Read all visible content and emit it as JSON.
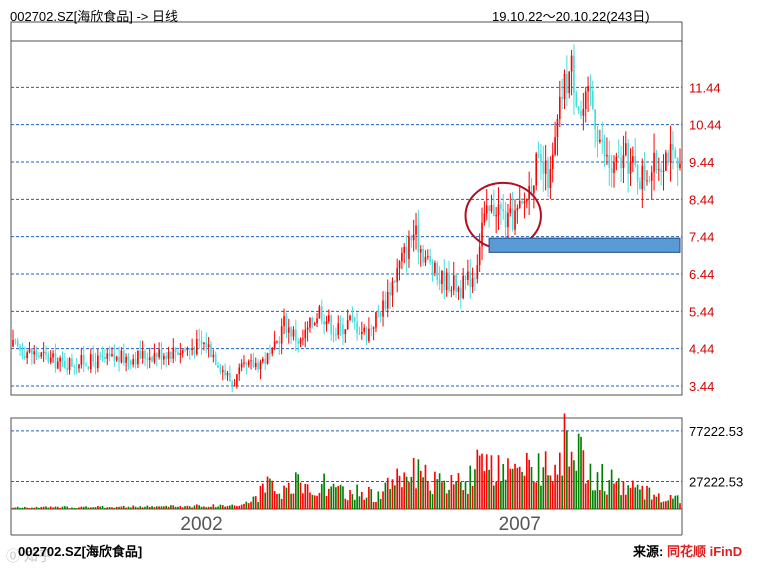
{
  "header": {
    "title": "002702.SZ[海欣食品] -> 日线",
    "range": "19.10.22～20.10.22(243日)"
  },
  "footer": {
    "ticker": "002702.SZ[海欣食品]",
    "source_label": "来源:",
    "brand_cn": "同花顺",
    "brand_en": "iFinD",
    "watermark": "⓪ 知乎"
  },
  "colors": {
    "up": "#ff0000",
    "down": "#40e0e0",
    "vol_down": "#008000",
    "axis": "#505050",
    "grid": "#2060c0",
    "price_label": "#d00000",
    "marker_circle": "#b01020",
    "marker_box_fill": "#5a9bd5",
    "marker_box_stroke": "#204a80"
  },
  "chart_data": {
    "type": "candlestick",
    "price_axis": {
      "ylim": [
        3.44,
        12.44
      ],
      "ticks": [
        3.44,
        4.44,
        5.44,
        6.44,
        7.44,
        8.44,
        9.44,
        10.44,
        11.44
      ]
    },
    "volume_axis": {
      "ylim": [
        0,
        90000
      ],
      "ticks": [
        27222.53,
        77222.53
      ]
    },
    "x_axis": {
      "labels": [
        "2002",
        "2007"
      ],
      "label_index": [
        80,
        215
      ]
    },
    "price_path": [
      [
        0,
        4.5
      ],
      [
        12,
        4.25
      ],
      [
        20,
        4.05
      ],
      [
        35,
        4.1
      ],
      [
        55,
        4.25
      ],
      [
        75,
        4.45
      ],
      [
        82,
        4.6
      ],
      [
        88,
        4.0
      ],
      [
        93,
        3.5
      ],
      [
        97,
        3.85
      ],
      [
        103,
        4.05
      ],
      [
        110,
        4.25
      ],
      [
        115,
        5.15
      ],
      [
        122,
        4.6
      ],
      [
        130,
        5.5
      ],
      [
        137,
        4.9
      ],
      [
        143,
        5.2
      ],
      [
        150,
        4.85
      ],
      [
        157,
        5.6
      ],
      [
        165,
        6.85
      ],
      [
        170,
        7.55
      ],
      [
        175,
        6.9
      ],
      [
        180,
        6.35
      ],
      [
        185,
        6.25
      ],
      [
        190,
        6.05
      ],
      [
        196,
        6.5
      ],
      [
        199,
        7.8
      ],
      [
        205,
        8.3
      ],
      [
        210,
        7.8
      ],
      [
        216,
        8.2
      ],
      [
        222,
        9.35
      ],
      [
        228,
        9.0
      ],
      [
        233,
        11.3
      ],
      [
        237,
        12.0
      ],
      [
        241,
        10.7
      ],
      [
        245,
        11.2
      ],
      [
        250,
        9.8
      ],
      [
        254,
        9.2
      ],
      [
        260,
        9.55
      ],
      [
        266,
        9.05
      ],
      [
        272,
        9.3
      ],
      [
        278,
        9.75
      ],
      [
        283,
        9.05
      ]
    ],
    "volume_path": [
      [
        0,
        1500
      ],
      [
        60,
        2500
      ],
      [
        90,
        3500
      ],
      [
        98,
        4500
      ],
      [
        102,
        10000
      ],
      [
        108,
        22000
      ],
      [
        114,
        14000
      ],
      [
        120,
        25000
      ],
      [
        126,
        19000
      ],
      [
        130,
        28000
      ],
      [
        136,
        19000
      ],
      [
        142,
        14000
      ],
      [
        148,
        18000
      ],
      [
        156,
        12000
      ],
      [
        162,
        33000
      ],
      [
        168,
        40000
      ],
      [
        174,
        30000
      ],
      [
        182,
        24000
      ],
      [
        190,
        26000
      ],
      [
        198,
        42000
      ],
      [
        205,
        36000
      ],
      [
        212,
        33000
      ],
      [
        218,
        38000
      ],
      [
        226,
        48000
      ],
      [
        232,
        58000
      ],
      [
        237,
        75000
      ],
      [
        243,
        40000
      ],
      [
        252,
        28000
      ],
      [
        262,
        21000
      ],
      [
        272,
        15000
      ],
      [
        283,
        10000
      ]
    ],
    "annotations": [
      {
        "type": "circle",
        "center": [
          208,
          8.0
        ],
        "rx_index": 16,
        "ry_price": 0.88
      },
      {
        "type": "box",
        "from_index": 202,
        "to_index": 283,
        "top": 7.4,
        "bottom": 7.02
      }
    ]
  }
}
